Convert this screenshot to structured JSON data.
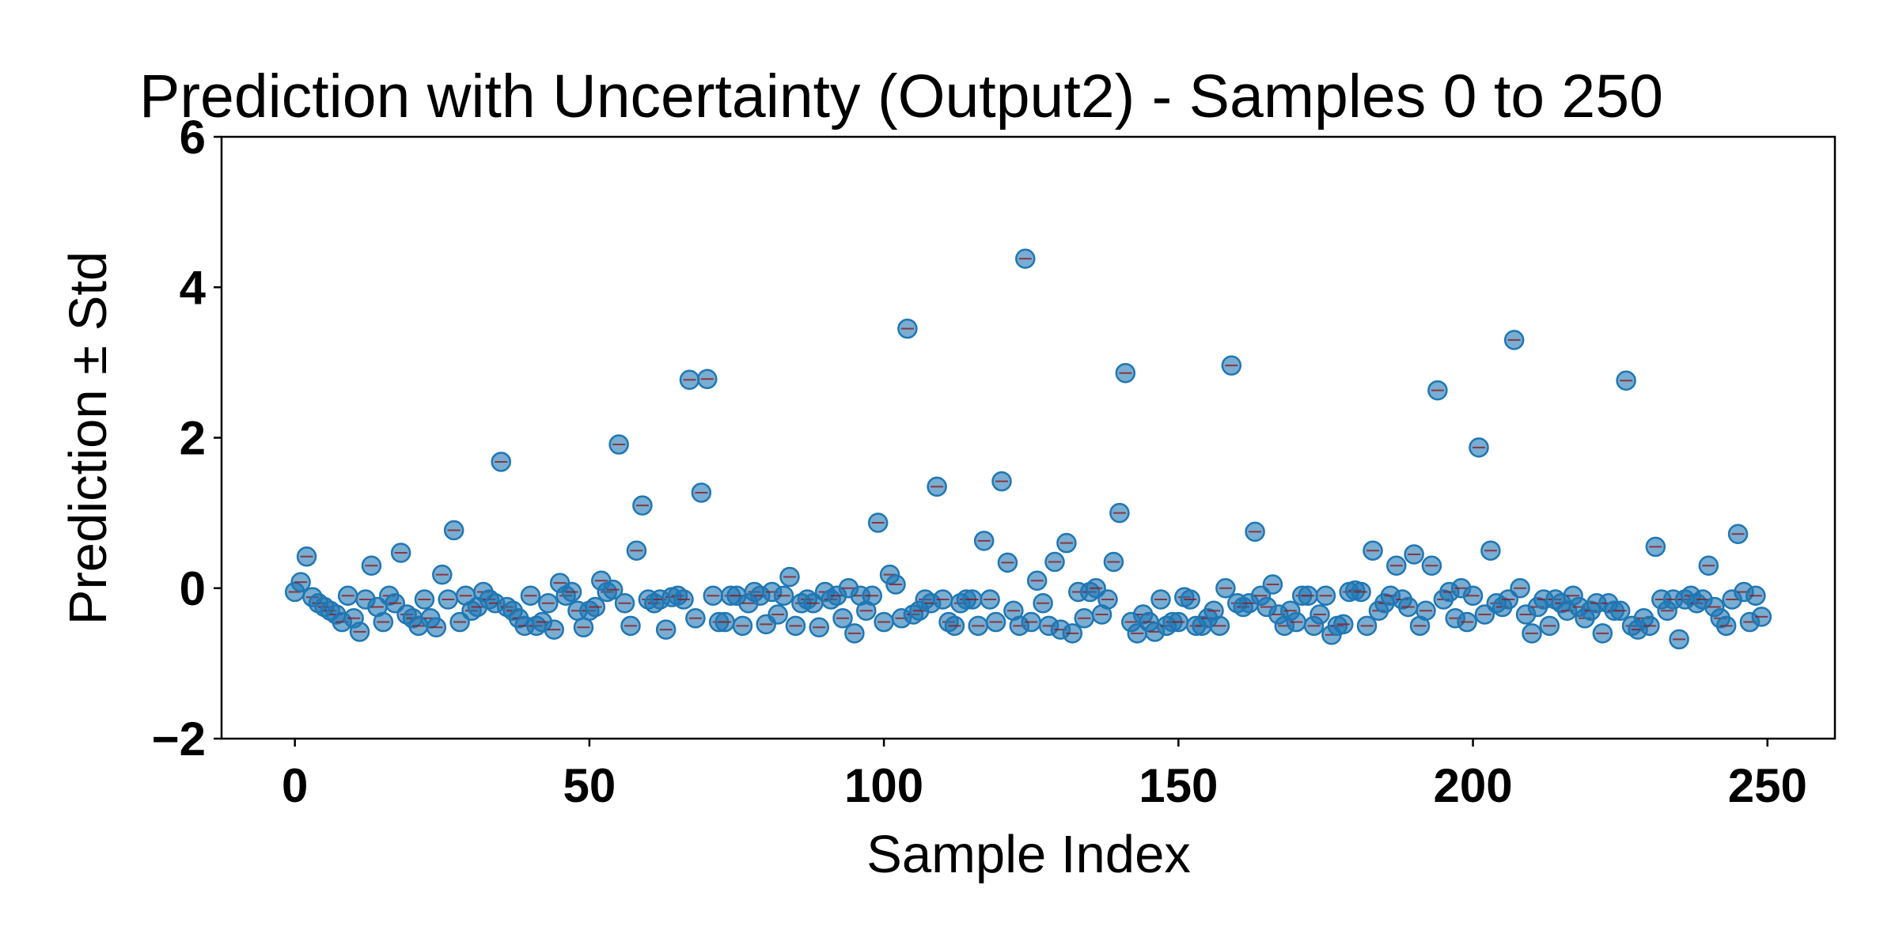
{
  "chart_data": {
    "type": "scatter",
    "title": "Prediction with Uncertainty (Output2) - Samples 0 to 250",
    "xlabel": "Sample Index",
    "ylabel": "Prediction ± Std",
    "color": "#1f77b4",
    "errorbar_color": "#8b1a1a",
    "xlim": [
      -12.45,
      261.45
    ],
    "ylim": [
      -2,
      6
    ],
    "xticks": [
      0,
      50,
      100,
      150,
      200,
      250
    ],
    "yticks": [
      {
        "value": -2,
        "label": "−2"
      },
      0,
      2,
      4,
      6
    ],
    "grid": false,
    "x": [
      0,
      1,
      2,
      3,
      4,
      5,
      6,
      7,
      8,
      9,
      10,
      11,
      12,
      13,
      14,
      15,
      16,
      17,
      18,
      19,
      20,
      21,
      22,
      23,
      24,
      25,
      26,
      27,
      28,
      29,
      30,
      31,
      32,
      33,
      34,
      35,
      36,
      37,
      38,
      39,
      40,
      41,
      42,
      43,
      44,
      45,
      46,
      47,
      48,
      49,
      50,
      51,
      52,
      53,
      54,
      55,
      56,
      57,
      58,
      59,
      60,
      61,
      62,
      63,
      64,
      65,
      66,
      67,
      68,
      69,
      70,
      71,
      72,
      73,
      74,
      75,
      76,
      77,
      78,
      79,
      80,
      81,
      82,
      83,
      84,
      85,
      86,
      87,
      88,
      89,
      90,
      91,
      92,
      93,
      94,
      95,
      96,
      97,
      98,
      99,
      100,
      101,
      102,
      103,
      104,
      105,
      106,
      107,
      108,
      109,
      110,
      111,
      112,
      113,
      114,
      115,
      116,
      117,
      118,
      119,
      120,
      121,
      122,
      123,
      124,
      125,
      126,
      127,
      128,
      129,
      130,
      131,
      132,
      133,
      134,
      135,
      136,
      137,
      138,
      139,
      140,
      141,
      142,
      143,
      144,
      145,
      146,
      147,
      148,
      149,
      150,
      151,
      152,
      153,
      154,
      155,
      156,
      157,
      158,
      159,
      160,
      161,
      162,
      163,
      164,
      165,
      166,
      167,
      168,
      169,
      170,
      171,
      172,
      173,
      174,
      175,
      176,
      177,
      178,
      179,
      180,
      181,
      182,
      183,
      184,
      185,
      186,
      187,
      188,
      189,
      190,
      191,
      192,
      193,
      194,
      195,
      196,
      197,
      198,
      199,
      200,
      201,
      202,
      203,
      204,
      205,
      206,
      207,
      208,
      209,
      210,
      211,
      212,
      213,
      214,
      215,
      216,
      217,
      218,
      219,
      220,
      221,
      222,
      223,
      224,
      225,
      226,
      227,
      228,
      229,
      230,
      231,
      232,
      233,
      234,
      235,
      236,
      237,
      238,
      239,
      240,
      241,
      242,
      243,
      244,
      245,
      246,
      247,
      248,
      249
    ],
    "values": [
      -0.05,
      0.08,
      0.42,
      -0.12,
      -0.2,
      -0.25,
      -0.3,
      -0.35,
      -0.45,
      -0.1,
      -0.4,
      -0.58,
      -0.15,
      0.3,
      -0.25,
      -0.45,
      -0.1,
      -0.2,
      0.47,
      -0.35,
      -0.4,
      -0.5,
      -0.15,
      -0.4,
      -0.52,
      0.18,
      -0.15,
      0.77,
      -0.45,
      -0.1,
      -0.3,
      -0.25,
      -0.05,
      -0.15,
      -0.2,
      1.68,
      -0.25,
      -0.3,
      -0.4,
      -0.5,
      -0.1,
      -0.5,
      -0.45,
      -0.2,
      -0.55,
      0.07,
      -0.1,
      -0.05,
      -0.3,
      -0.52,
      -0.3,
      -0.25,
      0.1,
      -0.05,
      -0.02,
      1.91,
      -0.2,
      -0.5,
      0.5,
      1.1,
      -0.15,
      -0.2,
      -0.15,
      -0.55,
      -0.12,
      -0.1,
      -0.15,
      2.77,
      -0.4,
      1.27,
      2.78,
      -0.1,
      -0.45,
      -0.45,
      -0.1,
      -0.1,
      -0.5,
      -0.2,
      -0.05,
      -0.1,
      -0.48,
      -0.05,
      -0.35,
      -0.1,
      0.15,
      -0.5,
      -0.2,
      -0.15,
      -0.2,
      -0.52,
      -0.05,
      -0.15,
      -0.1,
      -0.4,
      0.0,
      -0.6,
      -0.1,
      -0.3,
      -0.1,
      0.87,
      -0.45,
      0.18,
      0.05,
      -0.4,
      3.45,
      -0.35,
      -0.3,
      -0.15,
      -0.2,
      1.35,
      -0.15,
      -0.45,
      -0.5,
      -0.2,
      -0.15,
      -0.15,
      -0.5,
      0.63,
      -0.15,
      -0.45,
      1.42,
      0.34,
      -0.3,
      -0.5,
      4.38,
      -0.45,
      0.1,
      -0.2,
      -0.5,
      0.35,
      -0.55,
      0.6,
      -0.6,
      -0.05,
      -0.4,
      -0.05,
      0.0,
      -0.35,
      -0.15,
      0.35,
      1.0,
      2.86,
      -0.45,
      -0.6,
      -0.35,
      -0.45,
      -0.58,
      -0.15,
      -0.5,
      -0.45,
      -0.45,
      -0.12,
      -0.15,
      -0.5,
      -0.5,
      -0.4,
      -0.3,
      -0.5,
      0.0,
      2.96,
      -0.2,
      -0.25,
      -0.2,
      0.75,
      -0.1,
      -0.25,
      0.05,
      -0.35,
      -0.5,
      -0.3,
      -0.45,
      -0.1,
      -0.1,
      -0.5,
      -0.35,
      -0.1,
      -0.62,
      -0.5,
      -0.48,
      -0.05,
      -0.03,
      -0.05,
      -0.5,
      0.5,
      -0.3,
      -0.2,
      -0.1,
      0.3,
      -0.15,
      -0.25,
      0.45,
      -0.5,
      -0.3,
      0.3,
      2.63,
      -0.15,
      -0.05,
      -0.4,
      0.0,
      -0.45,
      -0.1,
      1.87,
      -0.35,
      0.5,
      -0.2,
      -0.25,
      -0.15,
      3.3,
      0.0,
      -0.35,
      -0.6,
      -0.25,
      -0.15,
      -0.5,
      -0.15,
      -0.2,
      -0.3,
      -0.1,
      -0.25,
      -0.4,
      -0.3,
      -0.2,
      -0.6,
      -0.2,
      -0.3,
      -0.3,
      2.76,
      -0.5,
      -0.55,
      -0.4,
      -0.5,
      0.55,
      -0.15,
      -0.3,
      -0.15,
      -0.68,
      -0.15,
      -0.1,
      -0.2,
      -0.15,
      0.3,
      -0.25,
      -0.4,
      -0.5,
      -0.15,
      0.72,
      -0.05,
      -0.45,
      -0.1,
      -0.38
    ]
  }
}
